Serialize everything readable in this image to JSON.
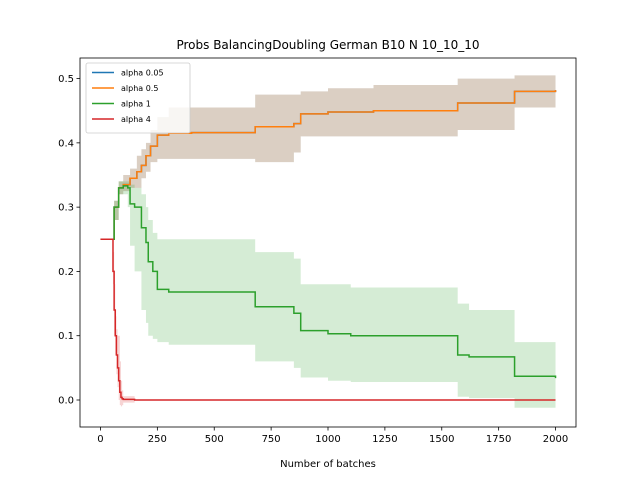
{
  "chart_data": {
    "type": "line",
    "title": "Probs BalancingDoubling German B10 N 10_10_10",
    "xlabel": "Number of batches",
    "ylabel": "",
    "xlim": [
      -90,
      2090
    ],
    "ylim": [
      -0.042,
      0.532
    ],
    "xticks": [
      0,
      250,
      500,
      750,
      1000,
      1250,
      1500,
      1750,
      2000
    ],
    "yticks": [
      0.0,
      0.1,
      0.2,
      0.3,
      0.4,
      0.5
    ],
    "xtick_labels": [
      "0",
      "250",
      "500",
      "750",
      "1000",
      "1250",
      "1500",
      "1750",
      "2000"
    ],
    "ytick_labels": [
      "0.0",
      "0.1",
      "0.2",
      "0.3",
      "0.4",
      "0.5"
    ],
    "grid": false,
    "legend_position": "top-left",
    "series": [
      {
        "name": "alpha 0.05",
        "color": "#1f77b4",
        "band_color": "#1f77b4",
        "x": [
          0,
          50,
          60,
          80,
          100,
          130,
          160,
          180,
          200,
          220,
          250,
          300,
          400,
          680,
          850,
          880,
          1000,
          1200,
          1570,
          1820,
          2000
        ],
        "y": [
          0.25,
          0.25,
          0.3,
          0.33,
          0.335,
          0.345,
          0.355,
          0.365,
          0.38,
          0.395,
          0.412,
          0.415,
          0.416,
          0.425,
          0.43,
          0.445,
          0.448,
          0.45,
          0.462,
          0.48,
          0.482
        ],
        "lower": [
          0.25,
          0.25,
          0.28,
          0.32,
          0.325,
          0.33,
          0.33,
          0.345,
          0.355,
          0.37,
          0.375,
          0.375,
          0.375,
          0.37,
          0.385,
          0.41,
          0.41,
          0.41,
          0.42,
          0.455,
          0.455
        ],
        "upper": [
          0.25,
          0.25,
          0.31,
          0.34,
          0.35,
          0.36,
          0.38,
          0.39,
          0.4,
          0.42,
          0.44,
          0.455,
          0.455,
          0.475,
          0.475,
          0.48,
          0.485,
          0.49,
          0.5,
          0.505,
          0.505
        ]
      },
      {
        "name": "alpha 0.5",
        "color": "#ff7f0e",
        "band_color": "#ff7f0e",
        "x": [
          0,
          50,
          60,
          80,
          100,
          130,
          160,
          180,
          200,
          220,
          250,
          300,
          400,
          680,
          850,
          880,
          1000,
          1200,
          1570,
          1820,
          2000
        ],
        "y": [
          0.25,
          0.25,
          0.3,
          0.33,
          0.335,
          0.345,
          0.355,
          0.365,
          0.38,
          0.395,
          0.412,
          0.415,
          0.416,
          0.425,
          0.43,
          0.445,
          0.448,
          0.45,
          0.462,
          0.48,
          0.482
        ],
        "lower": [
          0.25,
          0.25,
          0.28,
          0.32,
          0.325,
          0.33,
          0.33,
          0.345,
          0.355,
          0.37,
          0.375,
          0.375,
          0.375,
          0.37,
          0.385,
          0.41,
          0.41,
          0.41,
          0.42,
          0.455,
          0.455
        ],
        "upper": [
          0.25,
          0.25,
          0.31,
          0.34,
          0.35,
          0.36,
          0.38,
          0.39,
          0.4,
          0.42,
          0.44,
          0.455,
          0.455,
          0.475,
          0.475,
          0.48,
          0.485,
          0.49,
          0.5,
          0.505,
          0.505
        ]
      },
      {
        "name": "alpha 1",
        "color": "#2ca02c",
        "band_color": "#2ca02c",
        "x": [
          0,
          50,
          60,
          80,
          100,
          120,
          130,
          150,
          180,
          200,
          210,
          230,
          250,
          300,
          680,
          850,
          880,
          1000,
          1100,
          1570,
          1620,
          1820,
          2000
        ],
        "y": [
          0.25,
          0.25,
          0.3,
          0.33,
          0.333,
          0.33,
          0.305,
          0.3,
          0.268,
          0.245,
          0.215,
          0.2,
          0.172,
          0.168,
          0.145,
          0.135,
          0.108,
          0.103,
          0.1,
          0.07,
          0.067,
          0.037,
          0.034
        ],
        "lower": [
          0.25,
          0.25,
          0.28,
          0.32,
          0.32,
          0.3,
          0.24,
          0.2,
          0.14,
          0.12,
          0.1,
          0.095,
          0.09,
          0.086,
          0.06,
          0.05,
          0.035,
          0.03,
          0.028,
          0.005,
          0.003,
          -0.012,
          -0.015
        ],
        "upper": [
          0.25,
          0.25,
          0.31,
          0.34,
          0.34,
          0.34,
          0.335,
          0.33,
          0.32,
          0.3,
          0.28,
          0.26,
          0.25,
          0.25,
          0.23,
          0.22,
          0.18,
          0.18,
          0.175,
          0.15,
          0.14,
          0.09,
          0.085
        ]
      },
      {
        "name": "alpha 4",
        "color": "#d62728",
        "band_color": "#d62728",
        "x": [
          0,
          50,
          55,
          60,
          65,
          70,
          75,
          80,
          85,
          90,
          95,
          100,
          150,
          2000
        ],
        "y": [
          0.25,
          0.25,
          0.2,
          0.14,
          0.1,
          0.07,
          0.05,
          0.03,
          0.012,
          0.004,
          0.002,
          0.001,
          0.0,
          0.0
        ],
        "lower": [
          0.25,
          0.25,
          0.18,
          0.1,
          0.07,
          0.04,
          0.02,
          0.0,
          -0.008,
          -0.01,
          -0.008,
          -0.004,
          0.0,
          0.0
        ],
        "upper": [
          0.25,
          0.25,
          0.23,
          0.18,
          0.13,
          0.11,
          0.1,
          0.1,
          0.06,
          0.03,
          0.015,
          0.006,
          0.0,
          0.0
        ]
      }
    ]
  }
}
